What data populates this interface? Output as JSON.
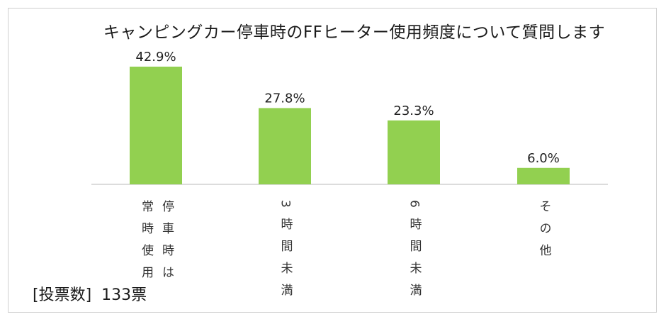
{
  "chart_data": {
    "type": "bar",
    "title": "キャンピングカー停車時のFFヒーター使用頻度について質問します",
    "categories": [
      "停車時は常時使用",
      "3時間未満",
      "6時間未満",
      "その他"
    ],
    "category_columns": [
      [
        "停車時は",
        "常時使用"
      ],
      [
        "3時間未満"
      ],
      [
        "6時間未満"
      ],
      [
        "その他"
      ]
    ],
    "values": [
      42.9,
      27.8,
      23.3,
      6.0
    ],
    "value_labels": [
      "42.9%",
      "27.8%",
      "23.3%",
      "6.0%"
    ],
    "unit": "%",
    "ylim": [
      0,
      45
    ],
    "grid": false,
    "bar_color": "#92d050",
    "xlabel": "",
    "ylabel": ""
  },
  "footer": {
    "votes_label": "[投票数]",
    "votes_value": "133票"
  }
}
